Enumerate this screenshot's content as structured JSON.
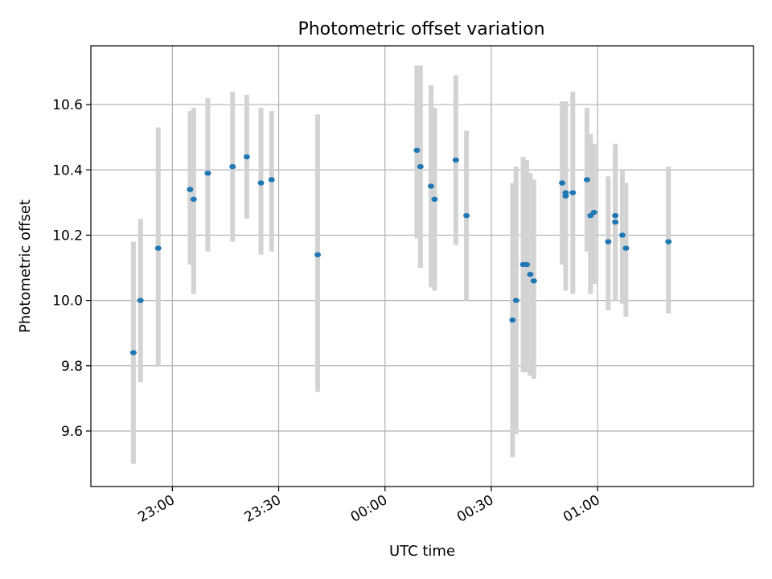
{
  "chart_data": {
    "type": "scatter",
    "title": "Photometric offset variation",
    "xlabel": "UTC time",
    "ylabel": "Photometric offset",
    "xlim": [
      "22:37",
      "01:44"
    ],
    "ylim": [
      9.43,
      10.78
    ],
    "grid": true,
    "x_ticks": [
      "23:00",
      "23:30",
      "00:00",
      "00:30",
      "01:00"
    ],
    "y_ticks": [
      "9.6",
      "9.8",
      "10.0",
      "10.2",
      "10.4",
      "10.6"
    ],
    "colors": {
      "point": "#1f77b4",
      "errorbar": "#d3d3d3",
      "grid": "#b0b0b0"
    },
    "points": [
      {
        "x": "22:49",
        "y": 9.84,
        "ylow": 9.5,
        "yhigh": 10.18
      },
      {
        "x": "22:51",
        "y": 10.0,
        "ylow": 9.75,
        "yhigh": 10.25
      },
      {
        "x": "22:56",
        "y": 10.16,
        "ylow": 9.8,
        "yhigh": 10.53
      },
      {
        "x": "23:05",
        "y": 10.34,
        "ylow": 10.11,
        "yhigh": 10.58
      },
      {
        "x": "23:06",
        "y": 10.31,
        "ylow": 10.02,
        "yhigh": 10.59
      },
      {
        "x": "23:10",
        "y": 10.39,
        "ylow": 10.15,
        "yhigh": 10.62
      },
      {
        "x": "23:17",
        "y": 10.41,
        "ylow": 10.18,
        "yhigh": 10.64
      },
      {
        "x": "23:21",
        "y": 10.44,
        "ylow": 10.25,
        "yhigh": 10.63
      },
      {
        "x": "23:25",
        "y": 10.36,
        "ylow": 10.14,
        "yhigh": 10.59
      },
      {
        "x": "23:28",
        "y": 10.37,
        "ylow": 10.15,
        "yhigh": 10.58
      },
      {
        "x": "23:41",
        "y": 10.14,
        "ylow": 9.72,
        "yhigh": 10.57
      },
      {
        "x": "00:09",
        "y": 10.46,
        "ylow": 10.19,
        "yhigh": 10.72
      },
      {
        "x": "00:10",
        "y": 10.41,
        "ylow": 10.1,
        "yhigh": 10.72
      },
      {
        "x": "00:13",
        "y": 10.35,
        "ylow": 10.04,
        "yhigh": 10.66
      },
      {
        "x": "00:14",
        "y": 10.31,
        "ylow": 10.03,
        "yhigh": 10.59
      },
      {
        "x": "00:20",
        "y": 10.43,
        "ylow": 10.17,
        "yhigh": 10.69
      },
      {
        "x": "00:23",
        "y": 10.26,
        "ylow": 10.0,
        "yhigh": 10.52
      },
      {
        "x": "00:36",
        "y": 9.94,
        "ylow": 9.52,
        "yhigh": 10.36
      },
      {
        "x": "00:37",
        "y": 10.0,
        "ylow": 9.59,
        "yhigh": 10.41
      },
      {
        "x": "00:39",
        "y": 10.11,
        "ylow": 9.78,
        "yhigh": 10.44
      },
      {
        "x": "00:40",
        "y": 10.11,
        "ylow": 9.78,
        "yhigh": 10.43
      },
      {
        "x": "00:41",
        "y": 10.08,
        "ylow": 9.77,
        "yhigh": 10.39
      },
      {
        "x": "00:42",
        "y": 10.06,
        "ylow": 9.76,
        "yhigh": 10.37
      },
      {
        "x": "00:50",
        "y": 10.36,
        "ylow": 10.11,
        "yhigh": 10.61
      },
      {
        "x": "00:51",
        "y": 10.33,
        "ylow": 10.07,
        "yhigh": 10.61
      },
      {
        "x": "00:51",
        "y": 10.32,
        "ylow": 10.03,
        "yhigh": 10.61
      },
      {
        "x": "00:53",
        "y": 10.33,
        "ylow": 10.02,
        "yhigh": 10.64
      },
      {
        "x": "00:57",
        "y": 10.37,
        "ylow": 10.15,
        "yhigh": 10.59
      },
      {
        "x": "00:58",
        "y": 10.26,
        "ylow": 10.02,
        "yhigh": 10.51
      },
      {
        "x": "00:59",
        "y": 10.27,
        "ylow": 10.05,
        "yhigh": 10.48
      },
      {
        "x": "01:03",
        "y": 10.18,
        "ylow": 9.97,
        "yhigh": 10.38
      },
      {
        "x": "01:05",
        "y": 10.26,
        "ylow": 10.02,
        "yhigh": 10.48
      },
      {
        "x": "01:05",
        "y": 10.24,
        "ylow": 10.0,
        "yhigh": 10.46
      },
      {
        "x": "01:07",
        "y": 10.2,
        "ylow": 9.99,
        "yhigh": 10.4
      },
      {
        "x": "01:08",
        "y": 10.16,
        "ylow": 9.95,
        "yhigh": 10.36
      },
      {
        "x": "01:20",
        "y": 10.18,
        "ylow": 9.96,
        "yhigh": 10.41
      }
    ]
  }
}
